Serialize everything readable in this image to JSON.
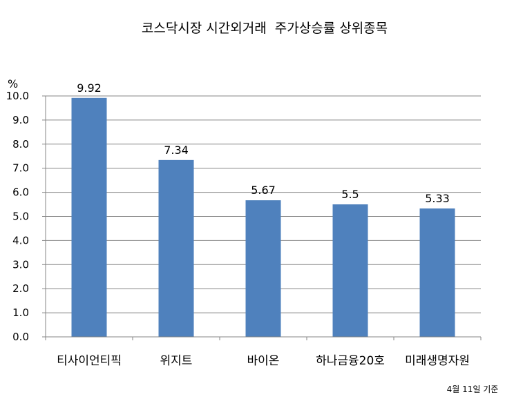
{
  "chart_data": {
    "type": "bar",
    "title": "코스닥시장 시간외거래  주가상승률 상위종목",
    "ylabel": "%",
    "ylim": [
      0,
      10
    ],
    "yticks": [
      "0.0",
      "1.0",
      "2.0",
      "3.0",
      "4.0",
      "5.0",
      "6.0",
      "7.0",
      "8.0",
      "9.0",
      "10.0"
    ],
    "categories": [
      "티사이언티픽",
      "위지트",
      "바이온",
      "하나금융20호",
      "미래생명자원"
    ],
    "values": [
      9.92,
      7.34,
      5.67,
      5.5,
      5.33
    ],
    "data_labels": [
      "9.92",
      "7.34",
      "5.67",
      "5.5",
      "5.33"
    ],
    "bar_color": "#4f81bd",
    "grid": true,
    "legend": "none",
    "note": "4월 11일 기준"
  }
}
